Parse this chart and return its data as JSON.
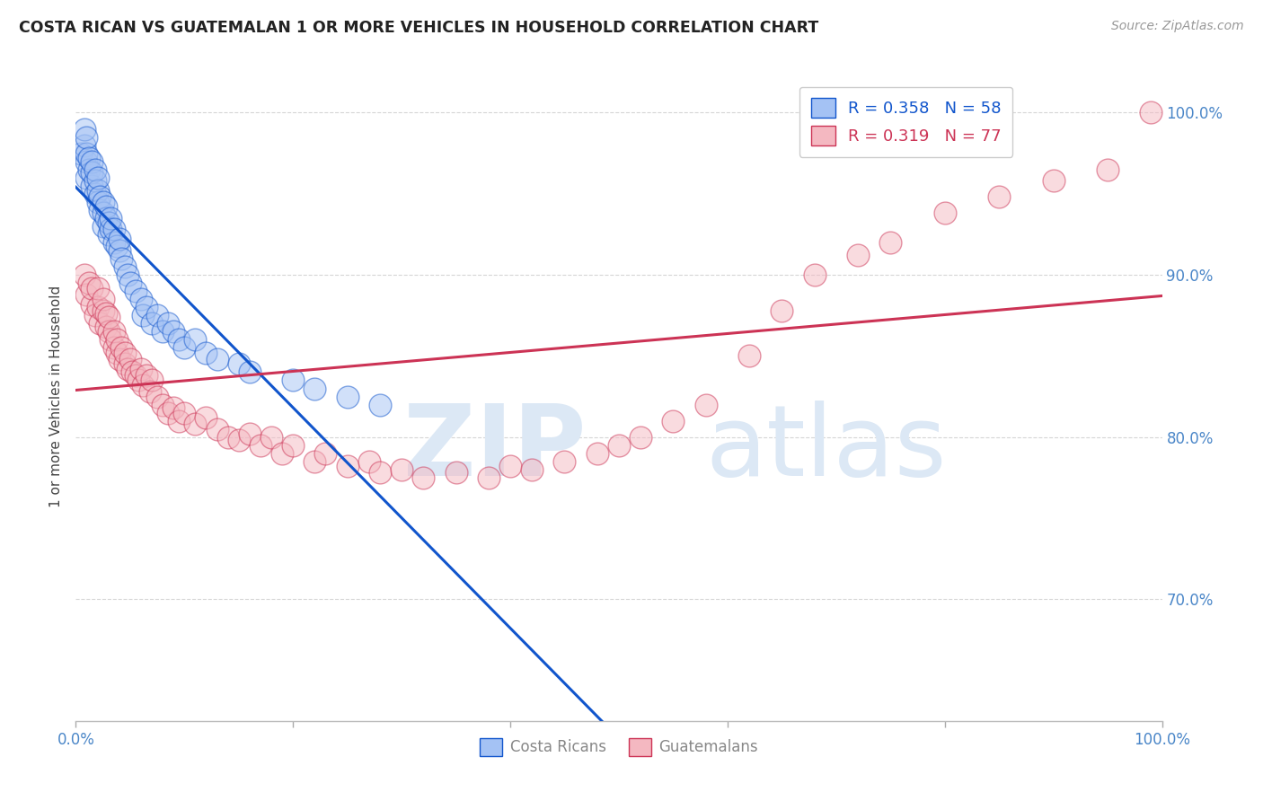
{
  "title": "COSTA RICAN VS GUATEMALAN 1 OR MORE VEHICLES IN HOUSEHOLD CORRELATION CHART",
  "source": "Source: ZipAtlas.com",
  "ylabel": "1 or more Vehicles in Household",
  "xlim": [
    0.0,
    1.0
  ],
  "ylim": [
    0.625,
    1.025
  ],
  "yticks": [
    0.7,
    0.8,
    0.9,
    1.0
  ],
  "ytick_labels": [
    "70.0%",
    "80.0%",
    "90.0%",
    "100.0%"
  ],
  "costa_rica_color": "#a4c2f4",
  "guatemala_color": "#f4b8c1",
  "trendline_costa_rica_color": "#1155cc",
  "trendline_guatemala_color": "#cc3355",
  "watermark_zip_color": "#d0dff0",
  "watermark_atlas_color": "#c0d8f0",
  "costa_rica_R": 0.358,
  "guatemala_R": 0.319,
  "costa_rica_N": 58,
  "guatemala_N": 77,
  "costa_rica_x": [
    0.005,
    0.008,
    0.008,
    0.01,
    0.01,
    0.01,
    0.01,
    0.012,
    0.012,
    0.015,
    0.015,
    0.015,
    0.018,
    0.018,
    0.018,
    0.02,
    0.02,
    0.02,
    0.022,
    0.022,
    0.025,
    0.025,
    0.025,
    0.028,
    0.028,
    0.03,
    0.03,
    0.032,
    0.032,
    0.035,
    0.035,
    0.038,
    0.04,
    0.04,
    0.042,
    0.045,
    0.048,
    0.05,
    0.055,
    0.06,
    0.062,
    0.065,
    0.07,
    0.075,
    0.08,
    0.085,
    0.09,
    0.095,
    0.1,
    0.11,
    0.12,
    0.13,
    0.15,
    0.16,
    0.2,
    0.22,
    0.25,
    0.28
  ],
  "costa_rica_y": [
    0.975,
    0.98,
    0.99,
    0.96,
    0.97,
    0.975,
    0.985,
    0.965,
    0.972,
    0.955,
    0.963,
    0.97,
    0.95,
    0.958,
    0.965,
    0.945,
    0.952,
    0.96,
    0.94,
    0.948,
    0.93,
    0.938,
    0.945,
    0.935,
    0.942,
    0.925,
    0.932,
    0.928,
    0.935,
    0.92,
    0.928,
    0.918,
    0.915,
    0.922,
    0.91,
    0.905,
    0.9,
    0.895,
    0.89,
    0.885,
    0.875,
    0.88,
    0.87,
    0.875,
    0.865,
    0.87,
    0.865,
    0.86,
    0.855,
    0.86,
    0.852,
    0.848,
    0.845,
    0.84,
    0.835,
    0.83,
    0.825,
    0.82
  ],
  "guatemala_x": [
    0.008,
    0.01,
    0.012,
    0.015,
    0.015,
    0.018,
    0.02,
    0.02,
    0.022,
    0.025,
    0.025,
    0.028,
    0.028,
    0.03,
    0.03,
    0.032,
    0.035,
    0.035,
    0.038,
    0.038,
    0.04,
    0.042,
    0.045,
    0.045,
    0.048,
    0.05,
    0.052,
    0.055,
    0.058,
    0.06,
    0.062,
    0.065,
    0.068,
    0.07,
    0.075,
    0.08,
    0.085,
    0.09,
    0.095,
    0.1,
    0.11,
    0.12,
    0.13,
    0.14,
    0.15,
    0.16,
    0.17,
    0.18,
    0.19,
    0.2,
    0.22,
    0.23,
    0.25,
    0.27,
    0.28,
    0.3,
    0.32,
    0.35,
    0.38,
    0.4,
    0.42,
    0.45,
    0.48,
    0.5,
    0.52,
    0.55,
    0.58,
    0.62,
    0.65,
    0.68,
    0.72,
    0.75,
    0.8,
    0.85,
    0.9,
    0.95,
    0.99
  ],
  "guatemala_y": [
    0.9,
    0.888,
    0.895,
    0.882,
    0.892,
    0.875,
    0.88,
    0.892,
    0.87,
    0.878,
    0.885,
    0.868,
    0.876,
    0.865,
    0.874,
    0.86,
    0.855,
    0.865,
    0.852,
    0.86,
    0.848,
    0.855,
    0.845,
    0.852,
    0.842,
    0.848,
    0.84,
    0.838,
    0.835,
    0.842,
    0.832,
    0.838,
    0.828,
    0.835,
    0.825,
    0.82,
    0.815,
    0.818,
    0.81,
    0.815,
    0.808,
    0.812,
    0.805,
    0.8,
    0.798,
    0.802,
    0.795,
    0.8,
    0.79,
    0.795,
    0.785,
    0.79,
    0.782,
    0.785,
    0.778,
    0.78,
    0.775,
    0.778,
    0.775,
    0.782,
    0.78,
    0.785,
    0.79,
    0.795,
    0.8,
    0.81,
    0.82,
    0.85,
    0.878,
    0.9,
    0.912,
    0.92,
    0.938,
    0.948,
    0.958,
    0.965,
    1.0
  ]
}
